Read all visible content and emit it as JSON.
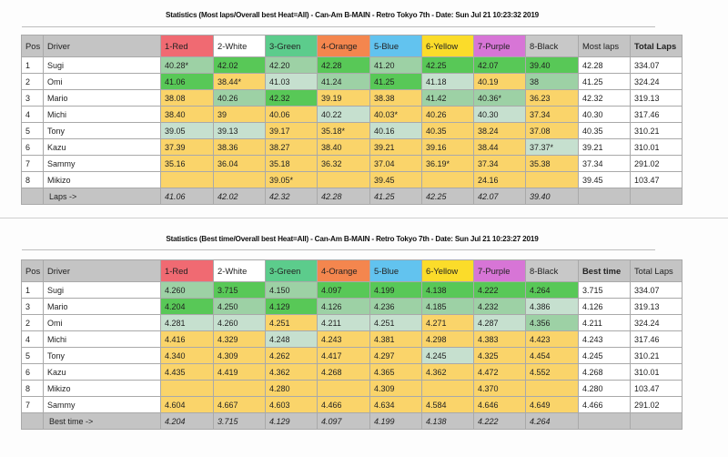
{
  "colors": {
    "best": "#58c857",
    "good": "#9dd1a5",
    "mid": "#c6e0cf",
    "low": "#fad46a",
    "header_gray": "#c4c4c4"
  },
  "laps_table": {
    "title": "Statistics (Most laps/Overall best Heat=All) - Can-Am B-MAIN - Retro Tokyo 7th - Date: Sun Jul 21 10:23:32 2019",
    "headers": {
      "pos": "Pos",
      "driver": "Driver",
      "lanes": [
        "1-Red",
        "2-White",
        "3-Green",
        "4-Orange",
        "5-Blue",
        "6-Yellow",
        "7-Purple",
        "8-Black"
      ],
      "stat": "Most laps",
      "total": "Total Laps"
    },
    "rows": [
      {
        "pos": "1",
        "driver": "Sugi",
        "lanes": [
          {
            "v": "40.28*",
            "s": "good"
          },
          {
            "v": "42.02",
            "s": "best"
          },
          {
            "v": "42.20",
            "s": "good"
          },
          {
            "v": "42.28",
            "s": "best"
          },
          {
            "v": "41.20",
            "s": "good"
          },
          {
            "v": "42.25",
            "s": "best"
          },
          {
            "v": "42.07",
            "s": "best"
          },
          {
            "v": "39.40",
            "s": "best"
          }
        ],
        "stat": "42.28",
        "total": "334.07",
        "total_bold": true,
        "stat_bold": false
      },
      {
        "pos": "2",
        "driver": "Omi",
        "lanes": [
          {
            "v": "41.06",
            "s": "best"
          },
          {
            "v": "38.44*",
            "s": "low"
          },
          {
            "v": "41.03",
            "s": "mid"
          },
          {
            "v": "41.24",
            "s": "good"
          },
          {
            "v": "41.25",
            "s": "best"
          },
          {
            "v": "41.18",
            "s": "mid"
          },
          {
            "v": "40.19",
            "s": "low"
          },
          {
            "v": "38",
            "s": "good"
          }
        ],
        "stat": "41.25",
        "total": "324.24",
        "total_bold": false,
        "stat_bold": false
      },
      {
        "pos": "3",
        "driver": "Mario",
        "lanes": [
          {
            "v": "38.08",
            "s": "low"
          },
          {
            "v": "40.26",
            "s": "good"
          },
          {
            "v": "42.32",
            "s": "best"
          },
          {
            "v": "39.19",
            "s": "low"
          },
          {
            "v": "38.38",
            "s": "low"
          },
          {
            "v": "41.42",
            "s": "good"
          },
          {
            "v": "40.36*",
            "s": "good"
          },
          {
            "v": "36.23",
            "s": "low"
          }
        ],
        "stat": "42.32",
        "total": "319.13",
        "total_bold": false,
        "stat_bold": true
      },
      {
        "pos": "4",
        "driver": "Michi",
        "lanes": [
          {
            "v": "38.40",
            "s": "low"
          },
          {
            "v": "39",
            "s": "low"
          },
          {
            "v": "40.06",
            "s": "low"
          },
          {
            "v": "40.22",
            "s": "mid"
          },
          {
            "v": "40.03*",
            "s": "low"
          },
          {
            "v": "40.26",
            "s": "low"
          },
          {
            "v": "40.30",
            "s": "mid"
          },
          {
            "v": "37.34",
            "s": "low"
          }
        ],
        "stat": "40.30",
        "total": "317.46",
        "total_bold": false,
        "stat_bold": false
      },
      {
        "pos": "5",
        "driver": "Tony",
        "lanes": [
          {
            "v": "39.05",
            "s": "mid"
          },
          {
            "v": "39.13",
            "s": "mid"
          },
          {
            "v": "39.17",
            "s": "low"
          },
          {
            "v": "35.18*",
            "s": "low"
          },
          {
            "v": "40.16",
            "s": "mid"
          },
          {
            "v": "40.35",
            "s": "low"
          },
          {
            "v": "38.24",
            "s": "low"
          },
          {
            "v": "37.08",
            "s": "low"
          }
        ],
        "stat": "40.35",
        "total": "310.21",
        "total_bold": false,
        "stat_bold": false
      },
      {
        "pos": "6",
        "driver": "Kazu",
        "lanes": [
          {
            "v": "37.39",
            "s": "low"
          },
          {
            "v": "38.36",
            "s": "low"
          },
          {
            "v": "38.27",
            "s": "low"
          },
          {
            "v": "38.40",
            "s": "low"
          },
          {
            "v": "39.21",
            "s": "low"
          },
          {
            "v": "39.16",
            "s": "low"
          },
          {
            "v": "38.44",
            "s": "low"
          },
          {
            "v": "37.37*",
            "s": "mid"
          }
        ],
        "stat": "39.21",
        "total": "310.01",
        "total_bold": false,
        "stat_bold": false
      },
      {
        "pos": "7",
        "driver": "Sammy",
        "lanes": [
          {
            "v": "35.16",
            "s": "low"
          },
          {
            "v": "36.04",
            "s": "low"
          },
          {
            "v": "35.18",
            "s": "low"
          },
          {
            "v": "36.32",
            "s": "low"
          },
          {
            "v": "37.04",
            "s": "low"
          },
          {
            "v": "36.19*",
            "s": "low"
          },
          {
            "v": "37.34",
            "s": "low"
          },
          {
            "v": "35.38",
            "s": "low"
          }
        ],
        "stat": "37.34",
        "total": "291.02",
        "total_bold": false,
        "stat_bold": false
      },
      {
        "pos": "8",
        "driver": "Mikizo",
        "lanes": [
          {
            "v": "",
            "s": "low"
          },
          {
            "v": "",
            "s": "low"
          },
          {
            "v": "39.05*",
            "s": "low"
          },
          {
            "v": "",
            "s": "low"
          },
          {
            "v": "39.45",
            "s": "low"
          },
          {
            "v": "",
            "s": "low"
          },
          {
            "v": "24.16",
            "s": "low"
          },
          {
            "v": "",
            "s": "low"
          }
        ],
        "stat": "39.45",
        "total": "103.47",
        "total_bold": false,
        "stat_bold": false
      }
    ],
    "footer": {
      "label": "Laps ->",
      "values": [
        "41.06",
        "42.02",
        "42.32",
        "42.28",
        "41.25",
        "42.25",
        "42.07",
        "39.40"
      ]
    }
  },
  "time_table": {
    "title": "Statistics (Best time/Overall best Heat=All) - Can-Am B-MAIN - Retro Tokyo 7th - Date: Sun Jul 21 10:23:27 2019",
    "headers": {
      "pos": "Pos",
      "driver": "Driver",
      "lanes": [
        "1-Red",
        "2-White",
        "3-Green",
        "4-Orange",
        "5-Blue",
        "6-Yellow",
        "7-Purple",
        "8-Black"
      ],
      "stat": "Best time",
      "total": "Total Laps"
    },
    "rows": [
      {
        "pos": "1",
        "driver": "Sugi",
        "lanes": [
          {
            "v": "4.260",
            "s": "good"
          },
          {
            "v": "3.715",
            "s": "best"
          },
          {
            "v": "4.150",
            "s": "good"
          },
          {
            "v": "4.097",
            "s": "best"
          },
          {
            "v": "4.199",
            "s": "best"
          },
          {
            "v": "4.138",
            "s": "best"
          },
          {
            "v": "4.222",
            "s": "best"
          },
          {
            "v": "4.264",
            "s": "best"
          }
        ],
        "stat": "3.715",
        "total": "334.07",
        "total_bold": true,
        "stat_bold": false
      },
      {
        "pos": "3",
        "driver": "Mario",
        "lanes": [
          {
            "v": "4.204",
            "s": "best"
          },
          {
            "v": "4.250",
            "s": "good"
          },
          {
            "v": "4.129",
            "s": "best"
          },
          {
            "v": "4.126",
            "s": "good"
          },
          {
            "v": "4.236",
            "s": "good"
          },
          {
            "v": "4.185",
            "s": "good"
          },
          {
            "v": "4.232",
            "s": "good"
          },
          {
            "v": "4.386",
            "s": "mid"
          }
        ],
        "stat": "4.126",
        "total": "319.13",
        "total_bold": false,
        "stat_bold": false
      },
      {
        "pos": "2",
        "driver": "Omi",
        "lanes": [
          {
            "v": "4.281",
            "s": "mid"
          },
          {
            "v": "4.260",
            "s": "mid"
          },
          {
            "v": "4.251",
            "s": "low"
          },
          {
            "v": "4.211",
            "s": "mid"
          },
          {
            "v": "4.251",
            "s": "mid"
          },
          {
            "v": "4.271",
            "s": "low"
          },
          {
            "v": "4.287",
            "s": "mid"
          },
          {
            "v": "4.356",
            "s": "good"
          }
        ],
        "stat": "4.211",
        "total": "324.24",
        "total_bold": false,
        "stat_bold": false
      },
      {
        "pos": "4",
        "driver": "Michi",
        "lanes": [
          {
            "v": "4.416",
            "s": "low"
          },
          {
            "v": "4.329",
            "s": "low"
          },
          {
            "v": "4.248",
            "s": "mid"
          },
          {
            "v": "4.243",
            "s": "low"
          },
          {
            "v": "4.381",
            "s": "low"
          },
          {
            "v": "4.298",
            "s": "low"
          },
          {
            "v": "4.383",
            "s": "low"
          },
          {
            "v": "4.423",
            "s": "low"
          }
        ],
        "stat": "4.243",
        "total": "317.46",
        "total_bold": false,
        "stat_bold": false
      },
      {
        "pos": "5",
        "driver": "Tony",
        "lanes": [
          {
            "v": "4.340",
            "s": "low"
          },
          {
            "v": "4.309",
            "s": "low"
          },
          {
            "v": "4.262",
            "s": "low"
          },
          {
            "v": "4.417",
            "s": "low"
          },
          {
            "v": "4.297",
            "s": "low"
          },
          {
            "v": "4.245",
            "s": "mid"
          },
          {
            "v": "4.325",
            "s": "low"
          },
          {
            "v": "4.454",
            "s": "low"
          }
        ],
        "stat": "4.245",
        "total": "310.21",
        "total_bold": false,
        "stat_bold": false
      },
      {
        "pos": "6",
        "driver": "Kazu",
        "lanes": [
          {
            "v": "4.435",
            "s": "low"
          },
          {
            "v": "4.419",
            "s": "low"
          },
          {
            "v": "4.362",
            "s": "low"
          },
          {
            "v": "4.268",
            "s": "low"
          },
          {
            "v": "4.365",
            "s": "low"
          },
          {
            "v": "4.362",
            "s": "low"
          },
          {
            "v": "4.472",
            "s": "low"
          },
          {
            "v": "4.552",
            "s": "low"
          }
        ],
        "stat": "4.268",
        "total": "310.01",
        "total_bold": false,
        "stat_bold": false
      },
      {
        "pos": "8",
        "driver": "Mikizo",
        "lanes": [
          {
            "v": "",
            "s": "low"
          },
          {
            "v": "",
            "s": "low"
          },
          {
            "v": "4.280",
            "s": "low"
          },
          {
            "v": "",
            "s": "low"
          },
          {
            "v": "4.309",
            "s": "low"
          },
          {
            "v": "",
            "s": "low"
          },
          {
            "v": "4.370",
            "s": "low"
          },
          {
            "v": "",
            "s": "low"
          }
        ],
        "stat": "4.280",
        "total": "103.47",
        "total_bold": false,
        "stat_bold": false
      },
      {
        "pos": "7",
        "driver": "Sammy",
        "lanes": [
          {
            "v": "4.604",
            "s": "low"
          },
          {
            "v": "4.667",
            "s": "low"
          },
          {
            "v": "4.603",
            "s": "low"
          },
          {
            "v": "4.466",
            "s": "low"
          },
          {
            "v": "4.634",
            "s": "low"
          },
          {
            "v": "4.584",
            "s": "low"
          },
          {
            "v": "4.646",
            "s": "low"
          },
          {
            "v": "4.649",
            "s": "low"
          }
        ],
        "stat": "4.466",
        "total": "291.02",
        "total_bold": false,
        "stat_bold": false
      }
    ],
    "footer": {
      "label": "Best time ->",
      "values": [
        "4.204",
        "3.715",
        "4.129",
        "4.097",
        "4.199",
        "4.138",
        "4.222",
        "4.264"
      ]
    }
  }
}
